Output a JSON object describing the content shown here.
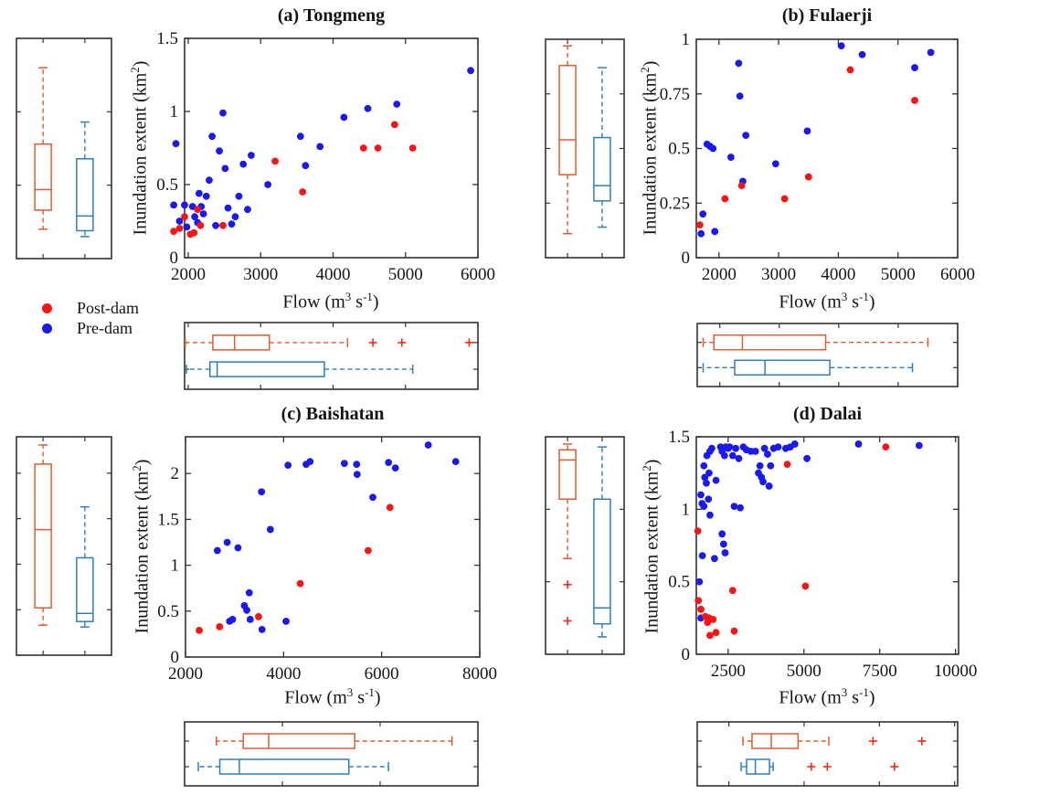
{
  "figure": {
    "legend": {
      "items": [
        {
          "label": "Post-dam",
          "color": "#fa1414"
        },
        {
          "label": "Pre-dam",
          "color": "#1a1af0"
        }
      ]
    },
    "labels": {
      "extent": {
        "text": "Inundation extent (km",
        "sup": "2",
        "close": ")"
      },
      "flow": {
        "text": "Flow (m",
        "sup_a": "3",
        "mid": " s",
        "sup_b": "-1",
        "close": ")"
      }
    },
    "colors": {
      "scatter_post": "#fa1414",
      "scatter_pre": "#1a1af0",
      "box_post": "#de5b33",
      "box_pre": "#2e7ebf",
      "outlier": "#fb2416",
      "frame": "#333333",
      "tick_text": "#151515"
    }
  },
  "chart_data": [
    {
      "id": "a",
      "type": "scatter",
      "title": "(a) Tongmeng",
      "xlabel": "Flow (m3 s-1)",
      "ylabel": "Inundation extent (km2)",
      "xlim": [
        1950,
        6000
      ],
      "ylim": [
        0,
        1.5
      ],
      "xticks": [
        2000,
        3000,
        4000,
        5000,
        6000
      ],
      "xtick_labels": [
        "2000",
        "3000",
        "4000",
        "5000",
        "6000"
      ],
      "yticks": [
        0,
        0.5,
        1,
        1.5
      ],
      "ytick_labels": [
        "0",
        "0.5",
        "1",
        "1.5"
      ],
      "series": [
        {
          "name": "Post-dam",
          "group": "post",
          "points": [
            [
              1800,
              0.18
            ],
            [
              1880,
              0.2
            ],
            [
              1950,
              0.28
            ],
            [
              2030,
              0.16
            ],
            [
              2080,
              0.17
            ],
            [
              2130,
              0.33
            ],
            [
              2170,
              0.22
            ],
            [
              2480,
              0.22
            ],
            [
              3200,
              0.66
            ],
            [
              3580,
              0.45
            ],
            [
              4420,
              0.75
            ],
            [
              4620,
              0.75
            ],
            [
              4850,
              0.91
            ],
            [
              5100,
              0.75
            ]
          ]
        },
        {
          "name": "Pre-dam",
          "group": "pre",
          "points": [
            [
              1800,
              0.36
            ],
            [
              1830,
              0.78
            ],
            [
              1880,
              0.25
            ],
            [
              1950,
              0.36
            ],
            [
              1980,
              0.21
            ],
            [
              2060,
              0.35
            ],
            [
              2090,
              0.28
            ],
            [
              2130,
              0.24
            ],
            [
              2150,
              0.44
            ],
            [
              2180,
              0.35
            ],
            [
              2210,
              0.3
            ],
            [
              2250,
              0.42
            ],
            [
              2290,
              0.53
            ],
            [
              2330,
              0.83
            ],
            [
              2380,
              0.22
            ],
            [
              2430,
              0.73
            ],
            [
              2480,
              0.99
            ],
            [
              2510,
              0.61
            ],
            [
              2550,
              0.34
            ],
            [
              2600,
              0.23
            ],
            [
              2650,
              0.28
            ],
            [
              2700,
              0.42
            ],
            [
              2760,
              0.64
            ],
            [
              2820,
              0.33
            ],
            [
              2870,
              0.7
            ],
            [
              3100,
              0.5
            ],
            [
              3550,
              0.83
            ],
            [
              3620,
              0.63
            ],
            [
              3820,
              0.76
            ],
            [
              4150,
              0.96
            ],
            [
              4480,
              1.02
            ],
            [
              4880,
              1.05
            ],
            [
              5900,
              1.28
            ]
          ]
        }
      ],
      "extent_boxplot": {
        "post": {
          "whisker_low": 0.2,
          "q1": 0.33,
          "median": 0.47,
          "q3": 0.78,
          "whisker_high": 1.3,
          "outliers": []
        },
        "pre": {
          "whisker_low": 0.15,
          "q1": 0.19,
          "median": 0.29,
          "q3": 0.68,
          "whisker_high": 0.93,
          "outliers": []
        }
      },
      "flow_boxplot": {
        "post": {
          "whisker_low": 1960,
          "q1": 2340,
          "median": 2640,
          "q3": 3120,
          "whisker_high": 4200,
          "outliers": [
            4550,
            4950,
            5880
          ]
        },
        "pre": {
          "whisker_low": 1975,
          "q1": 2300,
          "median": 2400,
          "q3": 3880,
          "whisker_high": 5100,
          "outliers": []
        }
      }
    },
    {
      "id": "b",
      "type": "scatter",
      "title": "(b) Fulaerji",
      "xlabel": "Flow (m3 s-1)",
      "ylabel": "Inundation extent (km2)",
      "xlim": [
        1620,
        6000
      ],
      "ylim": [
        0,
        1
      ],
      "xticks": [
        2000,
        3000,
        4000,
        5000,
        6000
      ],
      "xtick_labels": [
        "2000",
        "3000",
        "4000",
        "5000",
        "6000"
      ],
      "yticks": [
        0,
        0.25,
        0.5,
        0.75,
        1
      ],
      "ytick_labels": [
        "0",
        "0.25",
        "0.5",
        "0.75",
        "1"
      ],
      "series": [
        {
          "name": "Post-dam",
          "group": "post",
          "points": [
            [
              1680,
              0.15
            ],
            [
              2100,
              0.27
            ],
            [
              2380,
              0.33
            ],
            [
              3100,
              0.27
            ],
            [
              3500,
              0.37
            ],
            [
              4200,
              0.86
            ],
            [
              5280,
              0.72
            ]
          ]
        },
        {
          "name": "Pre-dam",
          "group": "pre",
          "points": [
            [
              1700,
              0.11
            ],
            [
              1730,
              0.2
            ],
            [
              1800,
              0.52
            ],
            [
              1850,
              0.51
            ],
            [
              1900,
              0.5
            ],
            [
              1930,
              0.12
            ],
            [
              2200,
              0.46
            ],
            [
              2330,
              0.89
            ],
            [
              2350,
              0.74
            ],
            [
              2400,
              0.35
            ],
            [
              2450,
              0.56
            ],
            [
              2950,
              0.43
            ],
            [
              3480,
              0.58
            ],
            [
              4050,
              0.97
            ],
            [
              4400,
              0.93
            ],
            [
              5280,
              0.87
            ],
            [
              5550,
              0.94
            ]
          ]
        }
      ],
      "extent_boxplot": {
        "post": {
          "whisker_low": 0.11,
          "q1": 0.38,
          "median": 0.54,
          "q3": 0.88,
          "whisker_high": 0.97,
          "outliers": []
        },
        "pre": {
          "whisker_low": 0.14,
          "q1": 0.26,
          "median": 0.33,
          "q3": 0.55,
          "whisker_high": 0.87,
          "outliers": []
        }
      },
      "flow_boxplot": {
        "post": {
          "whisker_low": 1720,
          "q1": 1900,
          "median": 2380,
          "q3": 3780,
          "whisker_high": 5500,
          "outliers": []
        },
        "pre": {
          "whisker_low": 1720,
          "q1": 2250,
          "median": 2760,
          "q3": 3850,
          "whisker_high": 5240,
          "outliers": []
        }
      }
    },
    {
      "id": "c",
      "type": "scatter",
      "title": "(c) Baishatan",
      "xlabel": "Flow (m3 s-1)",
      "ylabel": "Inundation extent (km2)",
      "xlim": [
        2000,
        8000
      ],
      "ylim": [
        0,
        2.4
      ],
      "xticks": [
        2000,
        4000,
        6000,
        8000
      ],
      "xtick_labels": [
        "2000",
        "4000",
        "6000",
        "8000"
      ],
      "yticks": [
        0,
        0.5,
        1,
        1.5,
        2
      ],
      "ytick_labels": [
        "0",
        "0.5",
        "1",
        "1.5",
        "2"
      ],
      "series": [
        {
          "name": "Post-dam",
          "group": "post",
          "points": [
            [
              2280,
              0.29
            ],
            [
              2695,
              0.33
            ],
            [
              3490,
              0.44
            ],
            [
              4340,
              0.8
            ],
            [
              5725,
              1.16
            ],
            [
              6170,
              1.63
            ]
          ]
        },
        {
          "name": "Pre-dam",
          "group": "pre",
          "points": [
            [
              2650,
              1.16
            ],
            [
              2850,
              1.25
            ],
            [
              2900,
              0.39
            ],
            [
              2960,
              0.41
            ],
            [
              3070,
              1.19
            ],
            [
              3200,
              0.56
            ],
            [
              3250,
              0.51
            ],
            [
              3300,
              0.7
            ],
            [
              3320,
              0.41
            ],
            [
              3550,
              1.8
            ],
            [
              3560,
              0.3
            ],
            [
              3730,
              1.39
            ],
            [
              4050,
              0.39
            ],
            [
              4090,
              2.09
            ],
            [
              4460,
              2.1
            ],
            [
              4540,
              2.13
            ],
            [
              5240,
              2.11
            ],
            [
              5490,
              2.1
            ],
            [
              5500,
              1.99
            ],
            [
              5820,
              1.74
            ],
            [
              6140,
              2.12
            ],
            [
              6280,
              2.06
            ],
            [
              6950,
              2.31
            ],
            [
              7510,
              2.13
            ]
          ]
        }
      ],
      "extent_boxplot": {
        "post": {
          "whisker_low": 0.33,
          "q1": 0.52,
          "median": 1.38,
          "q3": 2.1,
          "whisker_high": 2.31,
          "outliers": []
        },
        "pre": {
          "whisker_low": 0.31,
          "q1": 0.37,
          "median": 0.46,
          "q3": 1.07,
          "whisker_high": 1.63,
          "outliers": []
        }
      },
      "flow_boxplot": {
        "post": {
          "whisker_low": 2650,
          "q1": 3200,
          "median": 3720,
          "q3": 5480,
          "whisker_high": 7470,
          "outliers": []
        },
        "pre": {
          "whisker_low": 2280,
          "q1": 2720,
          "median": 3120,
          "q3": 5360,
          "whisker_high": 6170,
          "outliers": []
        }
      }
    },
    {
      "id": "d",
      "type": "scatter",
      "title": "(d) Dalai",
      "xlabel": "Flow (m3 s-1)",
      "ylabel": "Inundation extent (km2)",
      "xlim": [
        1450,
        10100
      ],
      "ylim": [
        0,
        1.5
      ],
      "xticks": [
        2500,
        5000,
        7500,
        10000
      ],
      "xtick_labels": [
        "2500",
        "5000",
        "7500",
        "10000"
      ],
      "yticks": [
        0,
        0.5,
        1,
        1.5
      ],
      "ytick_labels": [
        "0",
        "0.5",
        "1",
        "1.5"
      ],
      "series": [
        {
          "name": "Post-dam",
          "group": "post",
          "points": [
            [
              1500,
              0.85
            ],
            [
              1520,
              0.37
            ],
            [
              1600,
              0.31
            ],
            [
              1750,
              0.26
            ],
            [
              1820,
              0.22
            ],
            [
              1870,
              0.25
            ],
            [
              1900,
              0.13
            ],
            [
              2000,
              0.24
            ],
            [
              2100,
              0.15
            ],
            [
              2650,
              0.44
            ],
            [
              2700,
              0.16
            ],
            [
              4450,
              1.31
            ],
            [
              5050,
              0.47
            ],
            [
              7700,
              1.43
            ]
          ]
        },
        {
          "name": "Pre-dam",
          "group": "pre",
          "points": [
            [
              1550,
              0.5
            ],
            [
              1600,
              0.25
            ],
            [
              1600,
              1.1
            ],
            [
              1640,
              1.04
            ],
            [
              1650,
              0.68
            ],
            [
              1700,
              1.02
            ],
            [
              1700,
              1.3
            ],
            [
              1730,
              1.22
            ],
            [
              1780,
              1.18
            ],
            [
              1800,
              1.37
            ],
            [
              1850,
              1.07
            ],
            [
              1870,
              1.25
            ],
            [
              1900,
              0.96
            ],
            [
              1900,
              1.4
            ],
            [
              1960,
              1.42
            ],
            [
              2050,
              0.66
            ],
            [
              2100,
              1.2
            ],
            [
              2250,
              1.43
            ],
            [
              2300,
              0.83
            ],
            [
              2300,
              1.4
            ],
            [
              2350,
              0.76
            ],
            [
              2380,
              1.37
            ],
            [
              2400,
              0.7
            ],
            [
              2420,
              1.43
            ],
            [
              2500,
              1.42
            ],
            [
              2550,
              1.43
            ],
            [
              2650,
              1.37
            ],
            [
              2700,
              1.02
            ],
            [
              2750,
              1.42
            ],
            [
              2850,
              1.35
            ],
            [
              2900,
              1.01
            ],
            [
              3000,
              1.43
            ],
            [
              3100,
              1.41
            ],
            [
              3250,
              1.4
            ],
            [
              3400,
              1.4
            ],
            [
              3500,
              1.25
            ],
            [
              3550,
              1.3
            ],
            [
              3600,
              1.22
            ],
            [
              3650,
              1.19
            ],
            [
              3700,
              1.42
            ],
            [
              3800,
              1.38
            ],
            [
              3850,
              1.16
            ],
            [
              3900,
              1.3
            ],
            [
              4000,
              1.42
            ],
            [
              4150,
              1.43
            ],
            [
              4400,
              1.42
            ],
            [
              4550,
              1.43
            ],
            [
              4700,
              1.45
            ],
            [
              5100,
              1.35
            ],
            [
              6800,
              1.45
            ],
            [
              8800,
              1.44
            ]
          ]
        }
      ],
      "extent_boxplot": {
        "post": {
          "whisker_low": 0.66,
          "q1": 1.07,
          "median": 1.34,
          "q3": 1.41,
          "whisker_high": 1.45,
          "outliers": [
            0.48,
            0.23
          ]
        },
        "pre": {
          "whisker_low": 0.12,
          "q1": 0.21,
          "median": 0.32,
          "q3": 1.07,
          "whisker_high": 1.43,
          "outliers": []
        }
      },
      "flow_boxplot": {
        "post": {
          "whisker_low": 2970,
          "q1": 3270,
          "median": 3910,
          "q3": 4800,
          "whisker_high": 5820,
          "outliers": [
            7290,
            8910
          ]
        },
        "pre": {
          "whisker_low": 2910,
          "q1": 3090,
          "median": 3380,
          "q3": 3850,
          "whisker_high": 3970,
          "outliers": [
            5240,
            5770,
            8000
          ]
        }
      }
    }
  ]
}
